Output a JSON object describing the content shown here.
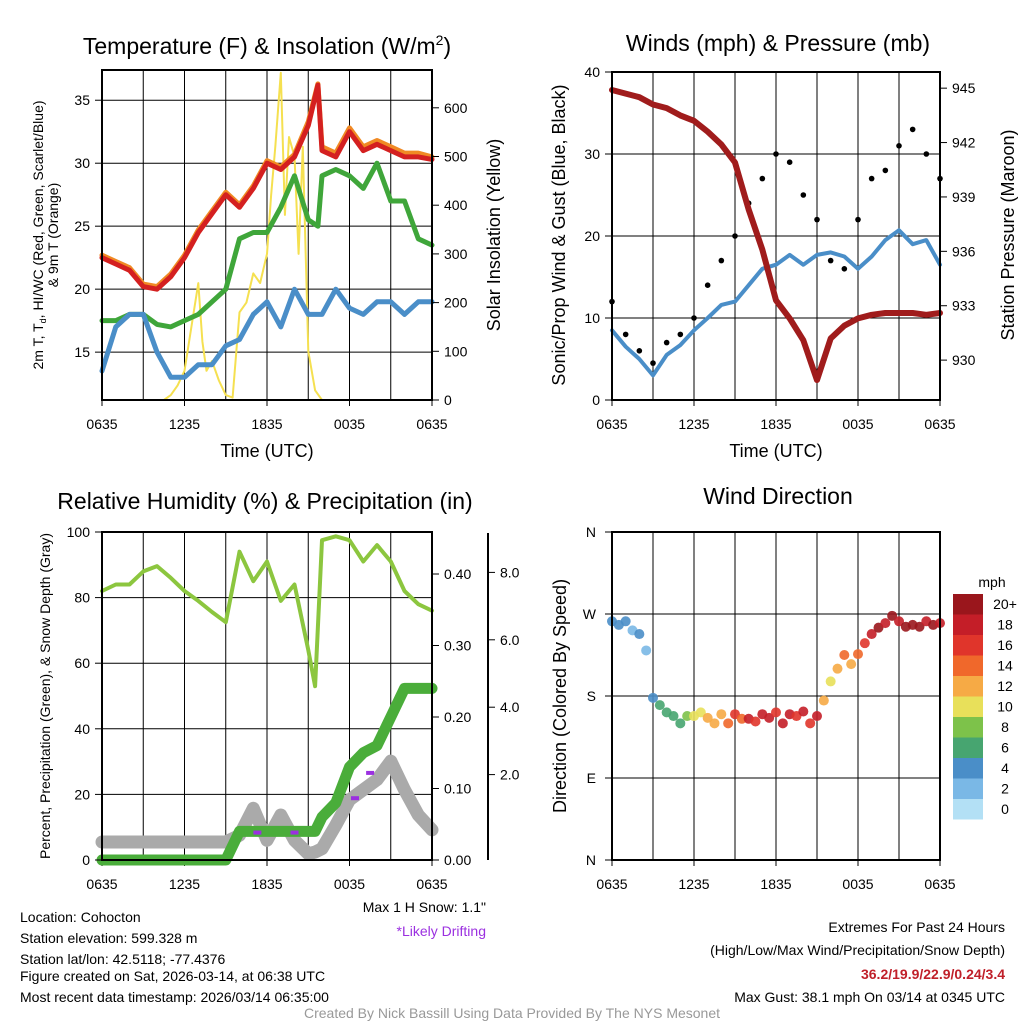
{
  "time_ticks": [
    "0635",
    "1235",
    "1835",
    "0035",
    "0635"
  ],
  "chart_data": [
    {
      "id": "temp",
      "type": "line",
      "title": {
        "main": "Temperature (F) & Insolation (W/m",
        "sup": "2",
        "end": ")"
      },
      "xlabel": "Time (UTC)",
      "ylabel": {
        "l1a": "2m T, T",
        "l1sub": "d",
        "l1b": ", HI/WC (Red, Green, Scarlet/Blue)",
        "l2": "& 9m T (Orange)"
      },
      "ylabel_right": "Solar Insolation (Yellow)",
      "x_hours_since_0635": [
        0,
        1,
        2,
        3,
        4,
        5,
        6,
        7,
        8,
        9,
        10,
        11,
        12,
        13,
        14,
        15,
        15.7,
        16,
        17,
        18,
        19,
        20,
        21,
        22,
        23,
        24
      ],
      "ylim": [
        11.2,
        37.4
      ],
      "yticks": [
        15,
        20,
        25,
        30,
        35
      ],
      "y2lim": [
        0,
        600
      ],
      "y2ticks": [
        "0",
        "100",
        "200",
        "300",
        "400",
        "500",
        "600"
      ],
      "series": [
        {
          "name": "9m T",
          "color": "#f08a24",
          "values": [
            22.7,
            22.2,
            21.7,
            20.4,
            20.2,
            21.2,
            22.7,
            24.7,
            26.2,
            27.7,
            26.7,
            28.2,
            30.2,
            29.7,
            30.7,
            33.3,
            36.3,
            31.3,
            30.8,
            32.8,
            31.3,
            31.8,
            31.3,
            30.8,
            30.8,
            30.5
          ]
        },
        {
          "name": "2m T",
          "color": "#d42020",
          "values": [
            22.5,
            22,
            21.5,
            20.2,
            20,
            21,
            22.5,
            24.5,
            26,
            27.5,
            26.5,
            28,
            30,
            29.5,
            30.5,
            33,
            36.2,
            31,
            30.5,
            32.5,
            31,
            31.5,
            31,
            30.5,
            30.5,
            30.3
          ]
        },
        {
          "name": "Td",
          "color": "#3fa63a",
          "values": [
            17.5,
            17.5,
            18,
            18,
            17.2,
            17,
            17.5,
            18,
            19,
            20,
            24,
            24.5,
            24.5,
            26.5,
            29,
            25.5,
            25,
            29,
            29.5,
            29,
            28,
            30,
            27,
            27,
            24,
            23.5
          ]
        },
        {
          "name": "HI/WC",
          "color": "#4a8ec8",
          "values": [
            13.5,
            17,
            18,
            18,
            15,
            13,
            13,
            14,
            14,
            15.5,
            16,
            18,
            19,
            17,
            20,
            18,
            18,
            18,
            20,
            18.5,
            18,
            19,
            19,
            18,
            19,
            19
          ]
        }
      ],
      "insolation": {
        "name": "Solar Insolation",
        "color": "#f5e050",
        "x_hours_since_0635": [
          0,
          4.5,
          5,
          5.5,
          6,
          6.5,
          7,
          7.3,
          7.6,
          8,
          8.5,
          9,
          9.5,
          10,
          10.5,
          11,
          11.5,
          12,
          12.3,
          12.6,
          13,
          13.3,
          13.6,
          14,
          14.3,
          14.6,
          15,
          15.5,
          16,
          17,
          18,
          20,
          24
        ],
        "values": [
          0,
          0,
          10,
          30,
          60,
          150,
          240,
          120,
          60,
          80,
          40,
          10,
          5,
          180,
          200,
          260,
          240,
          300,
          420,
          520,
          672,
          380,
          540,
          500,
          300,
          520,
          100,
          20,
          0,
          0,
          0,
          0,
          0
        ]
      }
    },
    {
      "id": "winds",
      "type": "line",
      "title": "Winds (mph) & Pressure (mb)",
      "xlabel": "Time (UTC)",
      "ylabel": "Sonic/Prop Wind & Gust (Blue, Black)",
      "ylabel_right": "Station Pressure (Maroon)",
      "x_hours_since_0635": [
        0,
        1,
        2,
        3,
        4,
        5,
        6,
        7,
        8,
        9,
        10,
        11,
        12,
        13,
        14,
        15,
        16,
        17,
        18,
        19,
        20,
        21,
        22,
        23,
        24
      ],
      "ylim": [
        0,
        40
      ],
      "yticks": [
        "0",
        "10",
        "20",
        "30",
        "40"
      ],
      "y2lim": [
        927.8,
        946
      ],
      "y2ticks": [
        "930",
        "933",
        "936",
        "939",
        "942",
        "945"
      ],
      "series": [
        {
          "name": "Pressure",
          "color": "#a01c1c",
          "values": [
            944.9,
            944.7,
            944.5,
            944.1,
            943.9,
            943.5,
            943.2,
            942.6,
            941.9,
            940.9,
            938.3,
            936.1,
            933.3,
            932.3,
            931.1,
            928.9,
            931.2,
            931.9,
            932.3,
            932.5,
            932.6,
            932.6,
            932.6,
            932.5,
            932.6
          ]
        },
        {
          "name": "Wind",
          "color": "#4a8ec8",
          "values": [
            8.5,
            6.5,
            5,
            3,
            5.5,
            6.7,
            8.5,
            10,
            11.6,
            12,
            14,
            16,
            16.5,
            17.7,
            16.5,
            17.7,
            18,
            17.5,
            16,
            17.5,
            19.5,
            20.7,
            19,
            19.5,
            16.5
          ]
        },
        {
          "name": "Gust",
          "color": "#000000",
          "type": "scatter",
          "values": [
            12,
            8,
            6,
            4.5,
            7,
            8,
            10,
            14,
            17,
            20,
            24,
            27,
            30,
            29,
            25,
            22,
            17,
            16,
            22,
            27,
            28,
            31,
            33,
            30,
            27
          ]
        }
      ]
    },
    {
      "id": "rh",
      "type": "line",
      "title": "Relative Humidity (%) & Precipitation (in)",
      "ylabel": "Percent, Precipitation (Green), & Snow Depth (Gray)",
      "x_hours_since_0635": [
        0,
        1,
        2,
        3,
        4,
        5,
        6,
        7,
        8,
        9,
        10,
        11,
        12,
        13,
        14,
        15,
        15.5,
        16,
        17,
        18,
        19,
        20,
        21,
        22,
        23,
        24
      ],
      "ylim": [
        0,
        100
      ],
      "yticks": [
        "0",
        "20",
        "40",
        "60",
        "80",
        "100"
      ],
      "y2ticks": [
        "0.00",
        "0.10",
        "0.20",
        "0.30",
        "0.40"
      ],
      "y3ticks": [
        "2.0",
        "4.0",
        "6.0",
        "8.0"
      ],
      "series": [
        {
          "name": "RH",
          "color": "#8cc63f",
          "values": [
            82,
            84,
            84,
            88,
            89.6,
            86,
            82,
            79,
            75.6,
            72.5,
            94,
            85,
            91,
            79,
            84,
            64,
            53,
            97.5,
            98.7,
            97.5,
            91,
            96,
            91,
            82,
            78,
            76
          ]
        },
        {
          "name": "Snow Depth",
          "color": "#aaaaaa",
          "values": [
            0,
            0,
            0,
            0,
            0,
            0,
            0,
            0,
            0,
            0,
            0.2,
            1.0,
            0.05,
            0.8,
            0.05,
            -0.35,
            -0.3,
            -0.2,
            0.5,
            1.25,
            1.55,
            1.85,
            2.4,
            1.55,
            0.8,
            0.36
          ]
        },
        {
          "name": "Precipitation",
          "color": "#4aad3a",
          "values": [
            0,
            0,
            0,
            0,
            0,
            0,
            0,
            0,
            0,
            0,
            0.04,
            0.04,
            0.04,
            0.04,
            0.04,
            0.04,
            0.04,
            0.06,
            0.08,
            0.13,
            0.15,
            0.16,
            0.2,
            0.24,
            0.24,
            0.24
          ]
        }
      ],
      "drifting_points": {
        "color": "#9b30e0",
        "x_hours_since_0635": [
          11.3,
          14,
          18.4,
          19.5
        ],
        "values": [
          0.28,
          0.28,
          1.3,
          2.05
        ]
      },
      "max_snow_label": "Max 1 H Snow: 1.1\"",
      "drifting_label": "*Likely Drifting"
    },
    {
      "id": "dir",
      "type": "scatter",
      "title": "Wind Direction",
      "ylabel": "Direction (Colored By Speed)",
      "yticks": [
        "N",
        "E",
        "S",
        "W",
        "N"
      ],
      "ylim": [
        0,
        360
      ],
      "x_hours_since_0635": [
        0,
        0.5,
        1,
        1.5,
        2,
        2.5,
        3,
        3.5,
        4,
        4.5,
        5,
        5.5,
        6,
        6.5,
        7,
        7.5,
        8,
        8.5,
        9,
        9.5,
        10,
        10.5,
        11,
        11.5,
        12,
        12.5,
        13,
        13.5,
        14,
        14.5,
        15,
        15.5,
        16,
        16.5,
        17,
        17.5,
        18,
        18.5,
        19,
        19.5,
        20,
        20.5,
        21,
        21.5,
        22,
        22.5,
        23,
        23.5,
        24
      ],
      "values": [
        262,
        258,
        262,
        252,
        248,
        230,
        178,
        170,
        162,
        158,
        150,
        158,
        158,
        162,
        156,
        150,
        160,
        150,
        160,
        155,
        155,
        152,
        160,
        156,
        162,
        150,
        160,
        158,
        163,
        150,
        158,
        175,
        196,
        210,
        225,
        215,
        226,
        238,
        248,
        255,
        260,
        268,
        262,
        256,
        258,
        256,
        262,
        258,
        260
      ],
      "speeds": [
        4,
        3,
        4,
        2,
        3,
        1,
        4,
        5,
        5,
        6,
        6,
        8,
        9,
        10,
        11,
        12,
        12,
        13,
        16,
        14,
        17,
        16,
        17,
        18,
        16,
        18,
        17,
        16,
        18,
        16,
        17,
        11,
        10,
        12,
        13,
        11,
        14,
        16,
        17,
        19,
        18,
        20,
        18,
        20,
        19,
        19,
        18,
        19,
        17
      ],
      "legend": {
        "title": "mph",
        "labels": [
          "20+",
          "18",
          "16",
          "14",
          "12",
          "10",
          "8",
          "6",
          "4",
          "2",
          "0"
        ],
        "colors": [
          "#9a161c",
          "#c41e28",
          "#e0352b",
          "#f0682b",
          "#f6aa45",
          "#e8e05a",
          "#7dc24a",
          "#47a570",
          "#4a8ec8",
          "#7ab8e6",
          "#b3e0f5"
        ]
      }
    }
  ],
  "station_info": {
    "location": "Location: Cohocton",
    "elevation": "Station elevation: 599.328 m",
    "latlon": "Station lat/lon: 42.5118; -77.4376",
    "created": "Figure created on Sat, 2026-03-14, at 06:38 UTC",
    "recent": "Most recent data timestamp: 2026/03/14 06:35:00"
  },
  "extremes": {
    "title": "Extremes For Past 24 Hours",
    "subtitle": "(High/Low/Max Wind/Precipitation/Snow Depth)",
    "values": "36.2/19.9/22.9/0.24/3.4",
    "values_color": "#c0202a",
    "max_gust": "Max Gust: 38.1 mph On 03/14 at 0345 UTC"
  },
  "credit": "Created By Nick Bassill Using Data Provided By The NYS Mesonet"
}
